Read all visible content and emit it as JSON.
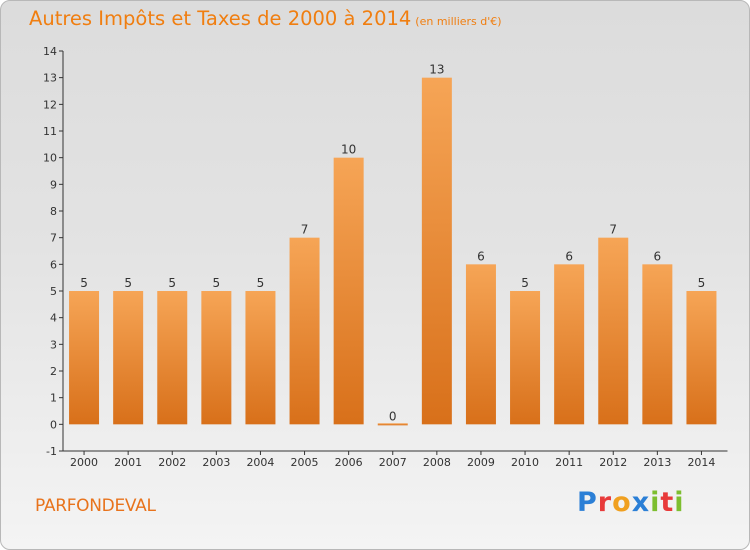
{
  "colors": {
    "bar_top": "#f6a556",
    "bar_bottom": "#d8701a",
    "title": "#f07e10",
    "commune": "#e8731c",
    "axis": "#333333"
  },
  "header": {
    "title": "Autres Impôts et Taxes de 2000 à 2014",
    "subtitle": "(en milliers d'€)"
  },
  "footer": {
    "commune": "PARFONDEVAL",
    "brand_letters": [
      {
        "char": "P",
        "color": "#2b7fd6"
      },
      {
        "char": "r",
        "color": "#e83a3a"
      },
      {
        "char": "o",
        "color": "#f0a020"
      },
      {
        "char": "x",
        "color": "#2b7fd6"
      },
      {
        "char": "i",
        "color": "#7dbe2f"
      },
      {
        "char": "t",
        "color": "#e83a3a"
      },
      {
        "char": "i",
        "color": "#7dbe2f"
      }
    ]
  },
  "chart_data": {
    "type": "bar",
    "categories": [
      "2000",
      "2001",
      "2002",
      "2003",
      "2004",
      "2005",
      "2006",
      "2007",
      "2008",
      "2009",
      "2010",
      "2011",
      "2012",
      "2013",
      "2014"
    ],
    "values": [
      5,
      5,
      5,
      5,
      5,
      7,
      10,
      0,
      13,
      6,
      5,
      6,
      7,
      6,
      5
    ],
    "data_labels": [
      "5",
      "5",
      "5",
      "5",
      "5",
      "7",
      "10",
      "0",
      "13",
      "6",
      "5",
      "6",
      "7",
      "6",
      "5"
    ],
    "yticks": [
      "-1",
      "0",
      "1",
      "2",
      "3",
      "4",
      "5",
      "6",
      "7",
      "8",
      "9",
      "10",
      "11",
      "12",
      "13",
      "14"
    ],
    "ylim": [
      -1,
      14
    ],
    "xlabel": "",
    "ylabel": "",
    "grid": false
  }
}
